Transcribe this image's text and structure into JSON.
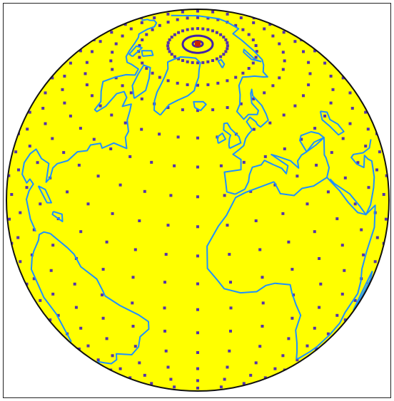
{
  "map": {
    "type": "orthographic globe",
    "description_note": "",
    "center": {
      "lat": 35,
      "lon": -20
    },
    "graticule_dots": {
      "lat_step_deg": 9,
      "lon_step_deg": 10,
      "max_lat_deg": 81
    },
    "colors": {
      "globe_fill": "#ffff00",
      "outline": "#111111",
      "coastline": "#1e90ff",
      "dot": "#5533aa",
      "pole_marker": "#cc2200",
      "pole_ring": "#4422aa",
      "frame": "#222222",
      "background": "#ffffff"
    }
  }
}
